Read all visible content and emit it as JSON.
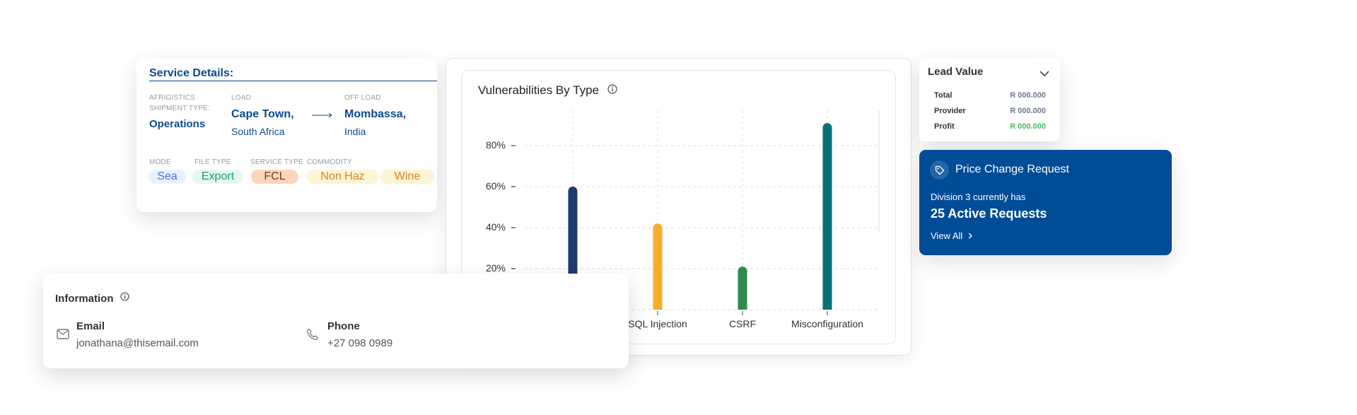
{
  "service": {
    "title": "Service Details:",
    "shipment_label_1": "AFRIGISTICS",
    "shipment_label_2": "SHIPMENT TYPE:",
    "shipment_value": "Operations",
    "load_label": "LOAD",
    "load_city": "Cape Town,",
    "load_country": "South Africa",
    "offload_label": "OFF LOAD",
    "offload_city": "Mombassa,",
    "offload_country": "India",
    "mode_label": "MODE",
    "filetype_label": "FILE TYPE",
    "servicetype_label": "SERVICE TYPE",
    "commodity_label": "COMMODITY",
    "tags": [
      "Sea",
      "Export",
      "FCL",
      "Non Haz",
      "Wine"
    ]
  },
  "chart_data": {
    "type": "bar",
    "title": "Vulnerabilities By Type",
    "categories": [
      "",
      "SQL Injection",
      "CSRF",
      "Misconfiguration"
    ],
    "values": [
      60,
      42,
      21,
      91
    ],
    "colors": [
      "#1f3a6e",
      "#f5ae2e",
      "#2e8b4c",
      "#007377"
    ],
    "yticks": [
      "20%",
      "40%",
      "60%",
      "80%"
    ],
    "ytick_values": [
      20,
      40,
      60,
      80
    ],
    "ylim": [
      0,
      100
    ],
    "grid": true
  },
  "lead": {
    "title": "Lead Value",
    "rows": [
      {
        "label": "Total",
        "value": "R 000.000"
      },
      {
        "label": "Provider",
        "value": "R 000.000"
      },
      {
        "label": "Profit",
        "value": "R 000.000"
      }
    ]
  },
  "price": {
    "title": "Price Change Request",
    "line1": "Division 3 currently has",
    "line2": "25 Active Requests",
    "link": "View All",
    "bg": "#004c97"
  },
  "info": {
    "title": "Information",
    "email_label": "Email",
    "email_value": "jonathana@thisemail.com",
    "phone_label": "Phone",
    "phone_value": "+27 098 0989"
  }
}
